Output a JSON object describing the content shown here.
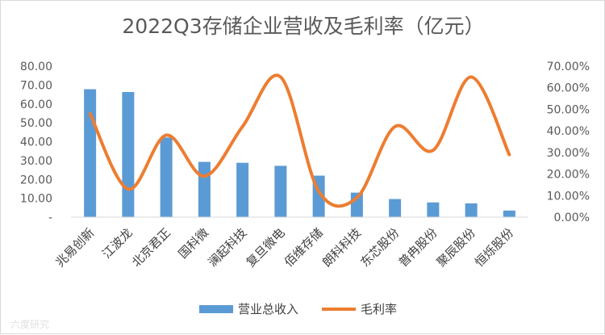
{
  "chart_data": {
    "type": "bar+line",
    "title": "2022Q3存储企业营收及毛利率（亿元）",
    "categories": [
      "兆易创新",
      "江波龙",
      "北京君正",
      "国科微",
      "澜起科技",
      "复旦微电",
      "佰维存储",
      "朗科科技",
      "东芯股份",
      "普冉股份",
      "聚辰股份",
      "恒烁股份"
    ],
    "series": [
      {
        "name": "营业总收入",
        "type": "bar",
        "axis": "left",
        "color": "#5b9bd5",
        "values": [
          67.8,
          66.3,
          42.2,
          29.3,
          28.8,
          27.2,
          22.0,
          13.0,
          9.6,
          7.8,
          7.3,
          3.5
        ]
      },
      {
        "name": "毛利率",
        "type": "line",
        "axis": "right",
        "color": "#ed7d31",
        "values": [
          0.48,
          0.13,
          0.38,
          0.19,
          0.42,
          0.65,
          0.12,
          0.09,
          0.42,
          0.31,
          0.65,
          0.29
        ]
      }
    ],
    "y_left": {
      "min": 0,
      "max": 80,
      "ticks": [
        "-",
        "10.00",
        "20.00",
        "30.00",
        "40.00",
        "50.00",
        "60.00",
        "70.00",
        "80.00"
      ]
    },
    "y_right": {
      "min": 0,
      "max": 0.7,
      "ticks": [
        "0.00%",
        "10.00%",
        "20.00%",
        "30.00%",
        "40.00%",
        "50.00%",
        "60.00%",
        "70.00%"
      ]
    },
    "grid": false,
    "legend_position": "bottom"
  },
  "watermark": "六度研究"
}
